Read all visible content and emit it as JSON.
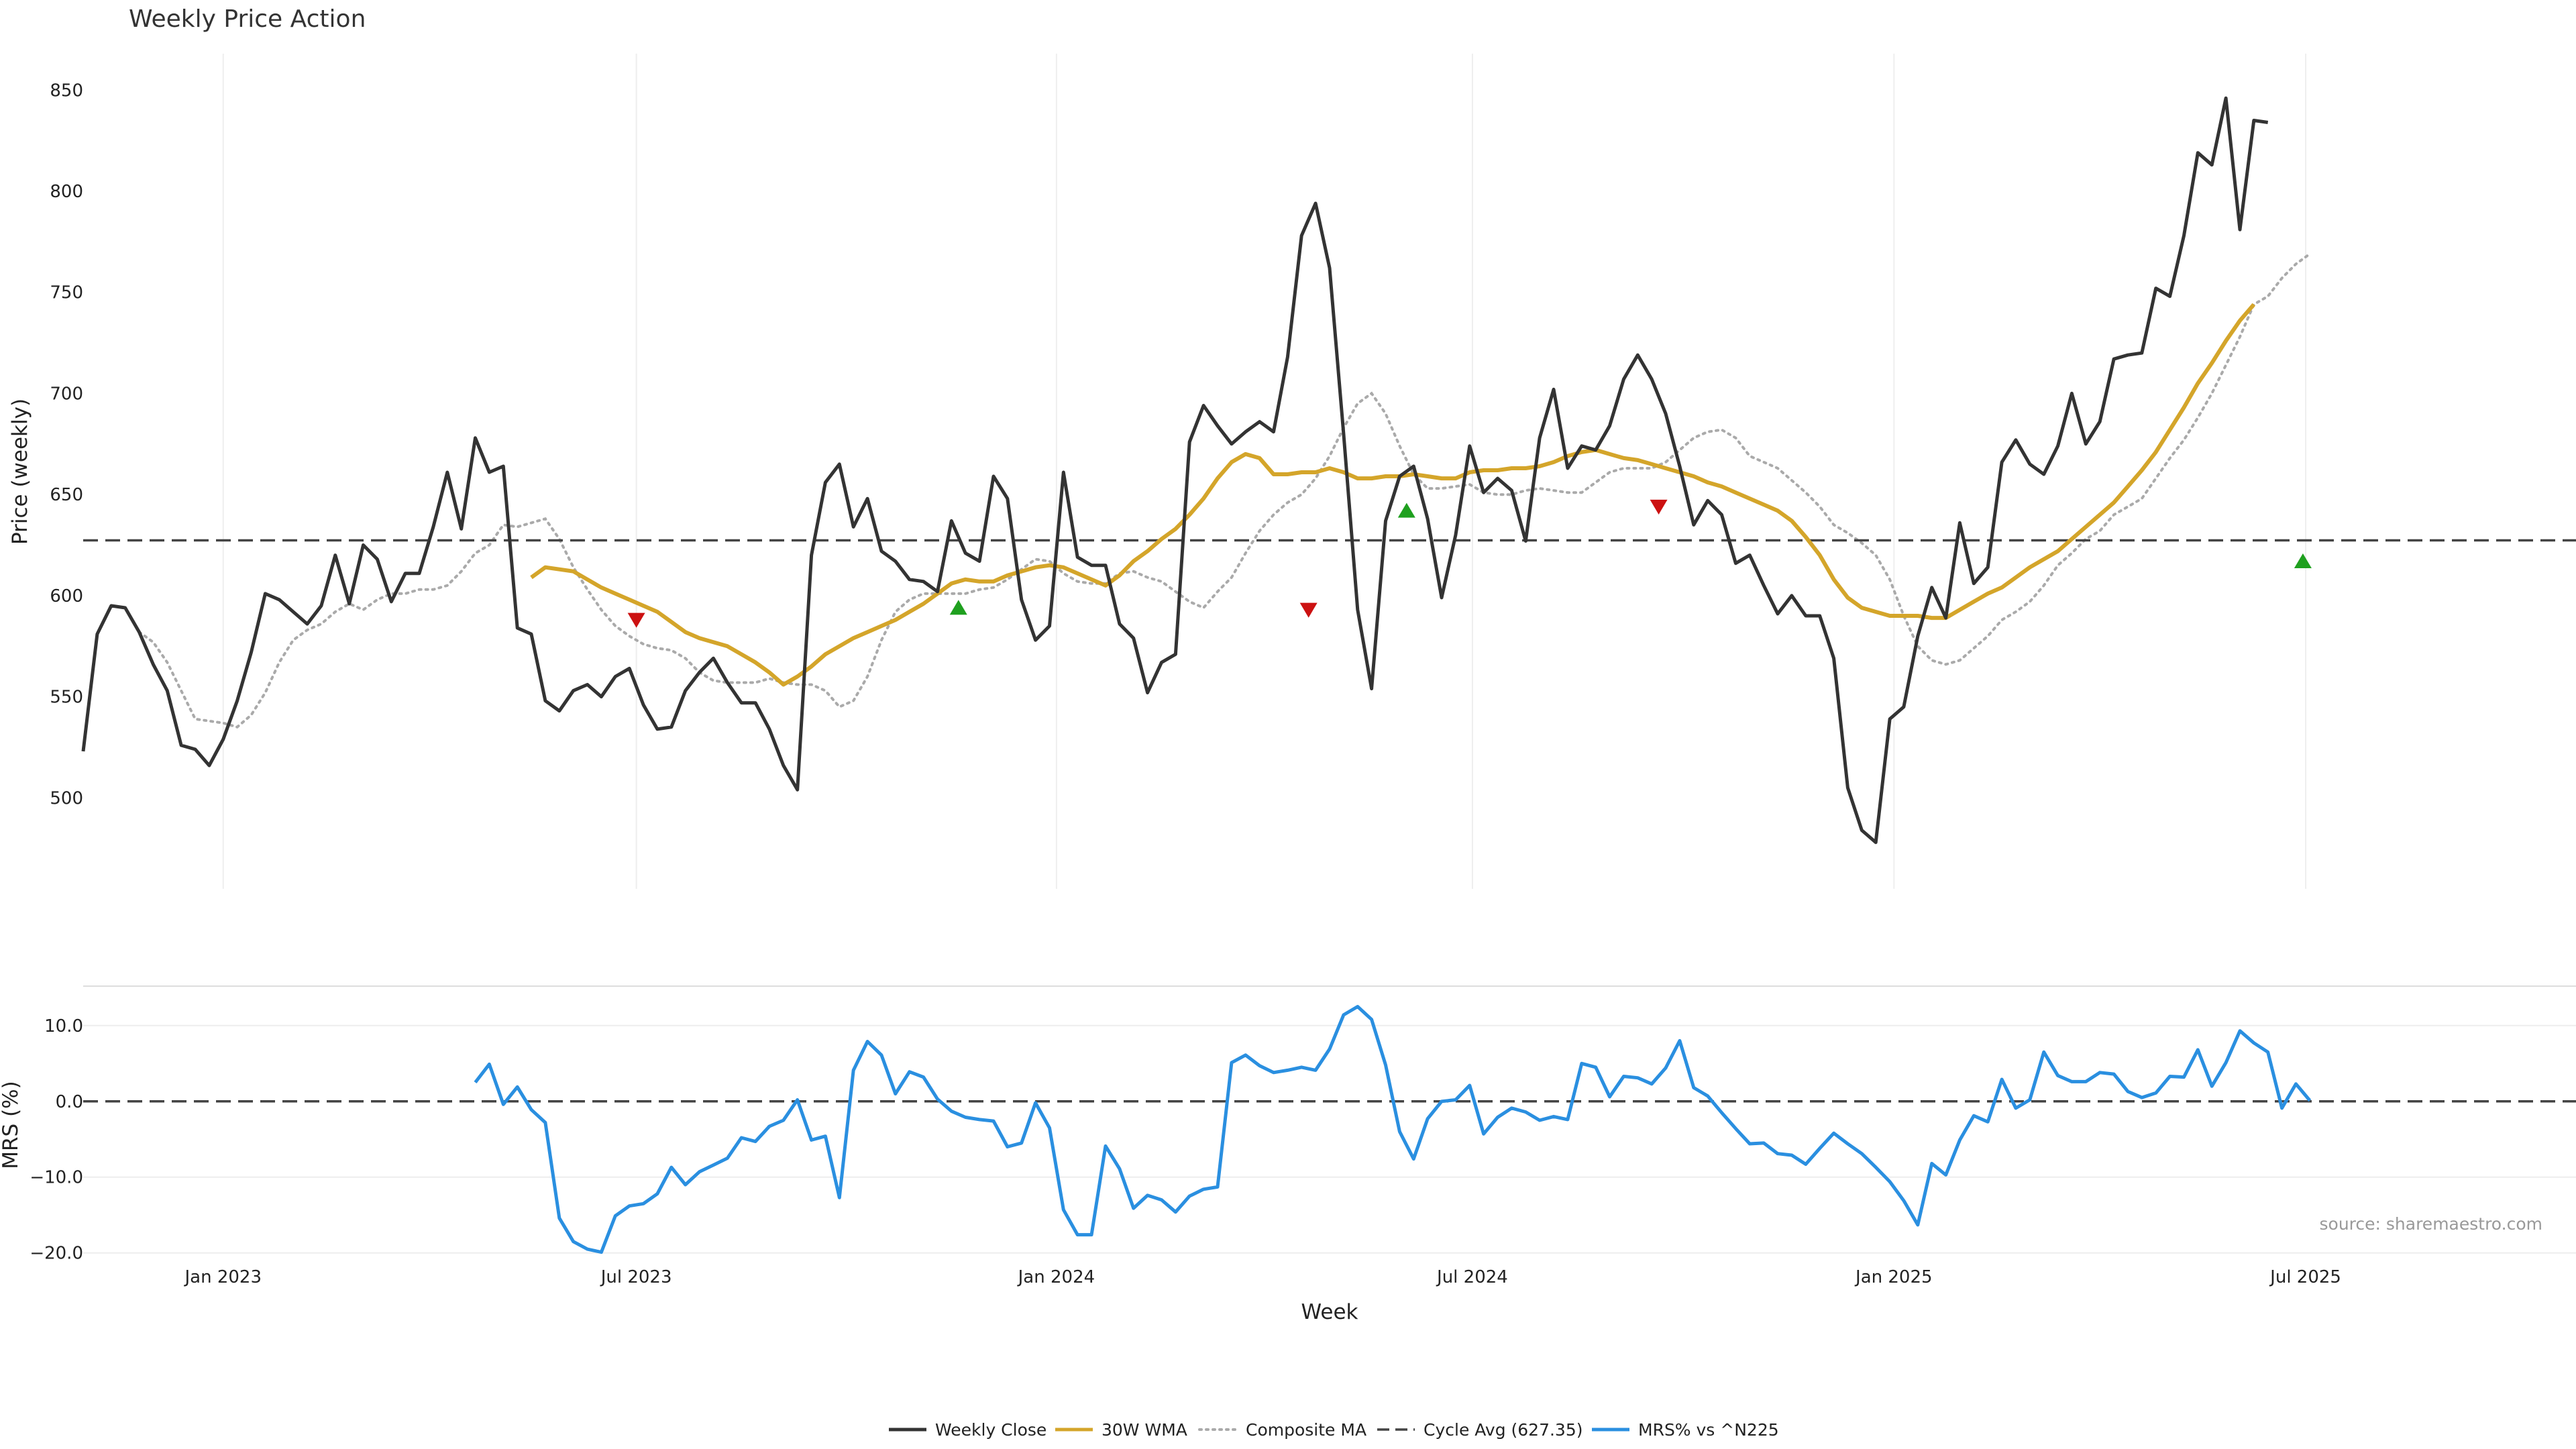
{
  "colors": {
    "close": "#333333",
    "wma": "#D4A52A",
    "composite": "#AAAAAA",
    "cycle": "#444444",
    "mrs": "#2A8FE0",
    "up": "#1FA01F",
    "down": "#CC1111",
    "grid": "#EEEEEE"
  },
  "source_text": "source: sharemaestro.com",
  "chart_data": [
    {
      "type": "line",
      "title": "Weekly Price Action",
      "xlabel": "Week",
      "ylabel": "Price (weekly)",
      "ylim": [
        455,
        868
      ],
      "yticks": [
        500,
        550,
        600,
        650,
        700,
        750,
        800,
        850
      ],
      "xlim": [
        0.0,
        178.0
      ],
      "x_ticks": [
        {
          "x": 10.0,
          "label": "Jan 2023"
        },
        {
          "x": 39.5,
          "label": "Jul 2023"
        },
        {
          "x": 69.5,
          "label": "Jan 2024"
        },
        {
          "x": 99.2,
          "label": "Jul 2024"
        },
        {
          "x": 129.3,
          "label": "Jan 2025"
        },
        {
          "x": 158.7,
          "label": "Jul 2025"
        }
      ],
      "series": [
        {
          "name": "Weekly Close",
          "start": 0,
          "values": [
            523,
            581,
            595,
            594,
            582,
            566,
            553,
            526,
            524,
            516,
            529,
            548,
            572,
            601,
            598,
            592,
            586,
            595,
            620,
            596,
            625,
            618,
            597,
            611,
            611,
            634,
            661,
            633,
            678,
            661,
            664,
            584,
            581,
            548,
            543,
            553,
            556,
            550,
            560,
            564,
            546,
            534,
            535,
            553,
            562,
            569,
            557,
            547,
            547,
            534,
            516,
            504,
            620,
            656,
            665,
            634,
            648,
            622,
            617,
            608,
            607,
            602,
            637,
            621,
            617,
            659,
            648,
            598,
            578,
            585,
            661,
            619,
            615,
            615,
            586,
            579,
            552,
            567,
            571,
            676,
            694,
            684,
            675,
            681,
            686,
            681,
            718,
            778,
            794,
            762,
            680,
            593,
            554,
            637,
            659,
            664,
            638,
            599,
            630,
            674,
            651,
            658,
            652,
            627,
            678,
            702,
            663,
            674,
            672,
            684,
            707,
            719,
            707,
            690,
            664,
            635,
            647,
            640,
            616,
            620,
            605,
            591,
            600,
            590,
            590,
            569,
            505,
            484,
            478,
            539,
            545,
            580,
            604,
            589,
            636,
            606,
            614,
            666,
            677,
            665,
            660,
            674,
            700,
            675,
            686,
            717,
            719,
            720,
            752,
            748,
            778,
            819,
            813,
            846,
            781,
            835,
            834
          ]
        },
        {
          "name": "30W WMA",
          "start": 32,
          "values": [
            609,
            614,
            613,
            612,
            608,
            604,
            601,
            598,
            595,
            592,
            587,
            582,
            579,
            577,
            575,
            571,
            567,
            562,
            556,
            560,
            565,
            571,
            575,
            579,
            582,
            585,
            588,
            592,
            596,
            601,
            606,
            608,
            607,
            607,
            610,
            612,
            614,
            615,
            614,
            611,
            608,
            605,
            610,
            617,
            622,
            628,
            633,
            640,
            648,
            658,
            666,
            670,
            668,
            660,
            660,
            661,
            661,
            663,
            661,
            658,
            658,
            659,
            659,
            660,
            659,
            658,
            658,
            661,
            662,
            662,
            663,
            663,
            664,
            666,
            669,
            671,
            672,
            670,
            668,
            667,
            665,
            663,
            661,
            659,
            656,
            654,
            651,
            648,
            645,
            642,
            637,
            629,
            620,
            608,
            599,
            594,
            592,
            590,
            590,
            590,
            589,
            589,
            593,
            597,
            601,
            604,
            609,
            614,
            618,
            622,
            628,
            634,
            640,
            646,
            654,
            662,
            671,
            682,
            693,
            705,
            715,
            726,
            736,
            744
          ]
        },
        {
          "name": "Composite MA",
          "start": 4,
          "values": [
            582,
            577,
            567,
            553,
            539,
            538,
            537,
            535,
            541,
            552,
            567,
            578,
            583,
            586,
            592,
            596,
            593,
            598,
            601,
            601,
            603,
            603,
            605,
            612,
            621,
            625,
            635,
            634,
            636,
            638,
            628,
            614,
            603,
            593,
            585,
            580,
            576,
            574,
            573,
            569,
            562,
            558,
            557,
            557,
            557,
            559,
            557,
            556,
            556,
            553,
            545,
            548,
            560,
            578,
            592,
            598,
            601,
            601,
            601,
            601,
            603,
            604,
            608,
            613,
            618,
            617,
            611,
            607,
            606,
            606,
            611,
            612,
            609,
            607,
            602,
            597,
            594,
            602,
            609,
            621,
            632,
            640,
            646,
            650,
            658,
            669,
            683,
            695,
            700,
            690,
            674,
            660,
            653,
            653,
            654,
            655,
            651,
            650,
            650,
            652,
            653,
            652,
            651,
            651,
            656,
            661,
            663,
            663,
            663,
            666,
            672,
            678,
            681,
            682,
            678,
            669,
            666,
            663,
            657,
            651,
            644,
            635,
            631,
            626,
            620,
            608,
            590,
            575,
            568,
            566,
            568,
            574,
            580,
            588,
            592,
            597,
            605,
            615,
            621,
            628,
            632,
            640,
            644,
            648,
            658,
            668,
            677,
            688,
            700,
            714,
            728,
            744,
            748,
            757,
            764,
            769
          ]
        },
        {
          "name": "Cycle Avg (627.35)",
          "value": 627.35
        }
      ],
      "markers": [
        {
          "type": "down",
          "x": 39.5,
          "y": 588
        },
        {
          "type": "up",
          "x": 62.5,
          "y": 594
        },
        {
          "type": "down",
          "x": 87.5,
          "y": 593
        },
        {
          "type": "up",
          "x": 94.5,
          "y": 642
        },
        {
          "type": "down",
          "x": 112.5,
          "y": 644
        },
        {
          "type": "up",
          "x": 158.5,
          "y": 617
        }
      ]
    },
    {
      "type": "line",
      "xlabel": "Week",
      "ylabel": "MRS (%)",
      "ylim": [
        -20.2,
        15.2
      ],
      "yticks": [
        -20,
        -10,
        0,
        10
      ],
      "ytick_labels": [
        "−20.0",
        "−10.0",
        "0.0",
        "10.0"
      ],
      "xlim": [
        0.0,
        178.0
      ],
      "series": [
        {
          "name": "MRS% vs ^N225",
          "start": 28,
          "values": [
            2.5,
            4.9,
            -0.4,
            1.9,
            -1.1,
            -2.8,
            -15.4,
            -18.5,
            -19.5,
            -19.9,
            -15.1,
            -13.8,
            -13.5,
            -12.2,
            -8.7,
            -11.0,
            -9.3,
            -8.4,
            -7.5,
            -4.8,
            -5.3,
            -3.3,
            -2.5,
            0.2,
            -5.1,
            -4.6,
            -12.7,
            4.1,
            7.9,
            6.1,
            1.0,
            3.9,
            3.2,
            0.3,
            -1.3,
            -2.1,
            -2.4,
            -2.6,
            -6.0,
            -5.5,
            -0.2,
            -3.5,
            -14.3,
            -17.6,
            -17.6,
            -5.9,
            -8.9,
            -14.1,
            -12.4,
            -13.0,
            -14.6,
            -12.5,
            -11.6,
            -11.3,
            5.1,
            6.1,
            4.7,
            3.8,
            4.1,
            4.5,
            4.1,
            6.9,
            11.4,
            12.5,
            10.8,
            4.8,
            -4.0,
            -7.6,
            -2.3,
            0.0,
            0.2,
            2.1,
            -4.3,
            -2.1,
            -0.9,
            -1.4,
            -2.5,
            -2.0,
            -2.4,
            5.0,
            4.5,
            0.6,
            3.3,
            3.1,
            2.3,
            4.4,
            8.0,
            1.8,
            0.7,
            -1.5,
            -3.6,
            -5.6,
            -5.5,
            -6.9,
            -7.1,
            -8.3,
            -6.2,
            -4.2,
            -5.6,
            -6.9,
            -8.7,
            -10.6,
            -13.1,
            -16.3,
            -8.2,
            -9.7,
            -5.1,
            -1.9,
            -2.7,
            2.9,
            -0.9,
            0.2,
            6.5,
            3.4,
            2.6,
            2.6,
            3.8,
            3.6,
            1.3,
            0.5,
            1.1,
            3.3,
            3.2,
            6.8,
            2.0,
            5.1,
            9.3,
            7.7,
            6.5,
            -0.9,
            2.3,
            0.1
          ]
        }
      ]
    }
  ],
  "legend": [
    {
      "label": "Weekly Close",
      "style": "solid",
      "color": "#333333"
    },
    {
      "label": "30W WMA",
      "style": "solid",
      "color": "#D4A52A"
    },
    {
      "label": "Composite MA",
      "style": "dotted",
      "color": "#AAAAAA"
    },
    {
      "label": "Cycle Avg (627.35)",
      "style": "dashed",
      "color": "#444444"
    },
    {
      "label": "MRS% vs ^N225",
      "style": "solid",
      "color": "#2A8FE0"
    }
  ]
}
